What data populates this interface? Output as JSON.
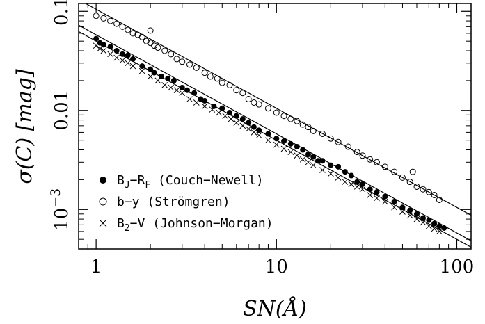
{
  "chart_data": {
    "type": "scatter",
    "xscale": "log",
    "yscale": "log",
    "xlim": [
      0.8,
      120
    ],
    "ylim": [
      0.0004,
      0.12
    ],
    "xlabel": "SN(Å)",
    "ylabel": "σ(C) [mag]",
    "xticks": [
      {
        "value": 1,
        "label": "1"
      },
      {
        "value": 10,
        "label": "10"
      },
      {
        "value": 100,
        "label": "100"
      }
    ],
    "yticks": [
      {
        "value": 0.1,
        "label": "0.1"
      },
      {
        "value": 0.01,
        "label": "0.01"
      },
      {
        "value": 0.001,
        "label": "10",
        "sup": "−3"
      }
    ],
    "legend_position": "bottom-left",
    "series": [
      {
        "name": "B_J−R_F (Couch−Newell)",
        "legend": {
          "main1": "B",
          "sub1": "J",
          "mid": "−R",
          "sub2": "F",
          "rest": " (Couch−Newell)"
        },
        "marker": "filled-circle",
        "line": {
          "slope": -1,
          "intercept_at_1": 0.058
        },
        "x": [
          1.0,
          1.05,
          1.1,
          1.2,
          1.3,
          1.4,
          1.5,
          1.6,
          1.8,
          2.0,
          2.1,
          2.3,
          2.5,
          2.7,
          3.0,
          3.2,
          3.5,
          3.8,
          4.0,
          4.5,
          5.0,
          5.5,
          6.0,
          6.5,
          7.0,
          7.5,
          8.0,
          9.0,
          10.0,
          11.0,
          12.0,
          13.0,
          14.0,
          15.0,
          16.0,
          17.0,
          18.0,
          20.0,
          22.0,
          24.0,
          26.0,
          28.0,
          30.0,
          33.0,
          36.0,
          40.0,
          45.0,
          50.0,
          55.0,
          60.0,
          65.0,
          70.0,
          75.0,
          80.0,
          85.0
        ],
        "y": [
          0.053,
          0.048,
          0.046,
          0.044,
          0.04,
          0.037,
          0.036,
          0.033,
          0.028,
          0.026,
          0.024,
          0.022,
          0.021,
          0.02,
          0.017,
          0.016,
          0.015,
          0.013,
          0.0125,
          0.011,
          0.0105,
          0.0095,
          0.0088,
          0.0082,
          0.0075,
          0.0068,
          0.0063,
          0.0058,
          0.0052,
          0.0049,
          0.0046,
          0.0043,
          0.004,
          0.0036,
          0.0034,
          0.0031,
          0.0031,
          0.0028,
          0.0027,
          0.0024,
          0.0022,
          0.0019,
          0.0018,
          0.0016,
          0.0015,
          0.00135,
          0.0012,
          0.00105,
          0.00098,
          0.0009,
          0.00082,
          0.00078,
          0.00072,
          0.00068,
          0.00065
        ]
      },
      {
        "name": "b−y (Strömgren)",
        "legend": {
          "main1": "b−y",
          "sub1": "",
          "mid": "",
          "sub2": "",
          "rest": "  (Strömgren)"
        },
        "marker": "open-circle",
        "line": {
          "slope": -1,
          "intercept_at_1": 0.105
        },
        "x": [
          1.0,
          1.1,
          1.2,
          1.3,
          1.4,
          1.5,
          1.6,
          1.7,
          1.8,
          1.9,
          2.0,
          2.1,
          2.2,
          2.4,
          2.6,
          2.8,
          3.0,
          3.3,
          3.6,
          4.0,
          4.3,
          4.7,
          5.0,
          5.5,
          6.0,
          6.5,
          7.0,
          7.5,
          8.0,
          9.0,
          10.0,
          11.0,
          12.0,
          13.0,
          14.0,
          15.0,
          16.0,
          18.0,
          20.0,
          22.0,
          25.0,
          28.0,
          30.0,
          33.0,
          36.0,
          40.0,
          45.0,
          50.0,
          55.0,
          60.0,
          65.0,
          70.0,
          75.0,
          80.0,
          2.0,
          57.0
        ],
        "y": [
          0.09,
          0.085,
          0.08,
          0.075,
          0.07,
          0.065,
          0.06,
          0.058,
          0.055,
          0.05,
          0.048,
          0.045,
          0.043,
          0.04,
          0.037,
          0.033,
          0.031,
          0.029,
          0.027,
          0.024,
          0.022,
          0.021,
          0.019,
          0.018,
          0.016,
          0.015,
          0.013,
          0.012,
          0.0115,
          0.0105,
          0.0095,
          0.0088,
          0.0082,
          0.0078,
          0.0072,
          0.0068,
          0.0062,
          0.0058,
          0.0052,
          0.0048,
          0.0043,
          0.0038,
          0.0035,
          0.0032,
          0.003,
          0.0027,
          0.0024,
          0.0021,
          0.0019,
          0.0017,
          0.0016,
          0.0015,
          0.0014,
          0.00125,
          0.064,
          0.0024
        ]
      },
      {
        "name": "B_2−V (Johnson−Morgan)",
        "legend": {
          "main1": "B",
          "sub1": "2",
          "mid": "−V",
          "sub2": "",
          "rest": " (Johnson−Morgan)"
        },
        "marker": "cross",
        "line": {
          "slope": -1,
          "intercept_at_1": 0.05
        },
        "x": [
          1.0,
          1.05,
          1.1,
          1.2,
          1.3,
          1.4,
          1.5,
          1.6,
          1.8,
          2.0,
          2.2,
          2.4,
          2.6,
          2.8,
          3.0,
          3.3,
          3.6,
          4.0,
          4.4,
          4.8,
          5.2,
          5.6,
          6.0,
          6.5,
          7.0,
          7.5,
          8.0,
          9.0,
          10.0,
          11.0,
          12.0,
          13.0,
          14.0,
          15.0,
          16.0,
          18.0,
          20.0,
          22.0,
          24.0,
          26.0,
          28.0,
          30.0,
          33.0,
          36.0,
          40.0,
          45.0,
          50.0,
          55.0,
          60.0,
          65.0,
          70.0,
          75.0,
          80.0
        ],
        "y": [
          0.045,
          0.042,
          0.04,
          0.037,
          0.034,
          0.032,
          0.03,
          0.028,
          0.025,
          0.022,
          0.02,
          0.018,
          0.017,
          0.016,
          0.015,
          0.013,
          0.012,
          0.011,
          0.0102,
          0.0095,
          0.0088,
          0.0082,
          0.0075,
          0.007,
          0.0065,
          0.006,
          0.0056,
          0.005,
          0.0045,
          0.0041,
          0.0038,
          0.0035,
          0.0032,
          0.003,
          0.0028,
          0.0025,
          0.0023,
          0.0021,
          0.0019,
          0.0018,
          0.0017,
          0.0016,
          0.0014,
          0.0013,
          0.0012,
          0.00105,
          0.00095,
          0.00087,
          0.0008,
          0.00074,
          0.00068,
          0.00064,
          0.0006
        ]
      }
    ]
  }
}
